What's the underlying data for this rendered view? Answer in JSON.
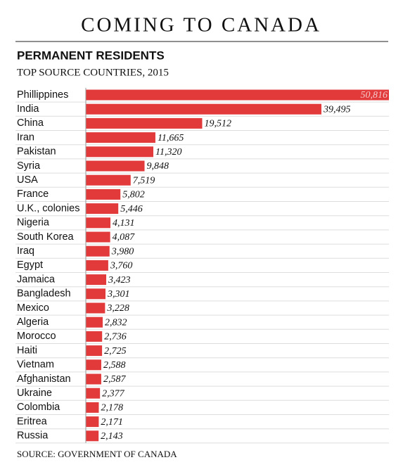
{
  "chart_data": {
    "type": "bar",
    "orientation": "horizontal",
    "title": "COMING TO CANADA",
    "subtitle": "PERMANENT RESIDENTS",
    "caption": "TOP SOURCE COUNTRIES, 2015",
    "source": "SOURCE: GOVERNMENT OF CANADA",
    "color": "#e2393b",
    "categories": [
      "Phillippines",
      "India",
      "China",
      "Iran",
      "Pakistan",
      "Syria",
      "USA",
      "France",
      "U.K., colonies",
      "Nigeria",
      "South Korea",
      "Iraq",
      "Egypt",
      "Jamaica",
      "Bangladesh",
      "Mexico",
      "Algeria",
      "Morocco",
      "Haiti",
      "Vietnam",
      "Afghanistan",
      "Ukraine",
      "Colombia",
      "Eritrea",
      "Russia"
    ],
    "values": [
      50816,
      39495,
      19512,
      11665,
      11320,
      9848,
      7519,
      5802,
      5446,
      4131,
      4087,
      3980,
      3760,
      3423,
      3301,
      3228,
      2832,
      2736,
      2725,
      2588,
      2587,
      2377,
      2178,
      2171,
      2143
    ],
    "value_labels": [
      "50,816",
      "39,495",
      "19,512",
      "11,665",
      "11,320",
      "9,848",
      "7,519",
      "5,802",
      "5,446",
      "4,131",
      "4,087",
      "3,980",
      "3,760",
      "3,423",
      "3,301",
      "3,228",
      "2,832",
      "2,736",
      "2,725",
      "2,588",
      "2,587",
      "2,377",
      "2,178",
      "2,171",
      "2,143"
    ]
  }
}
